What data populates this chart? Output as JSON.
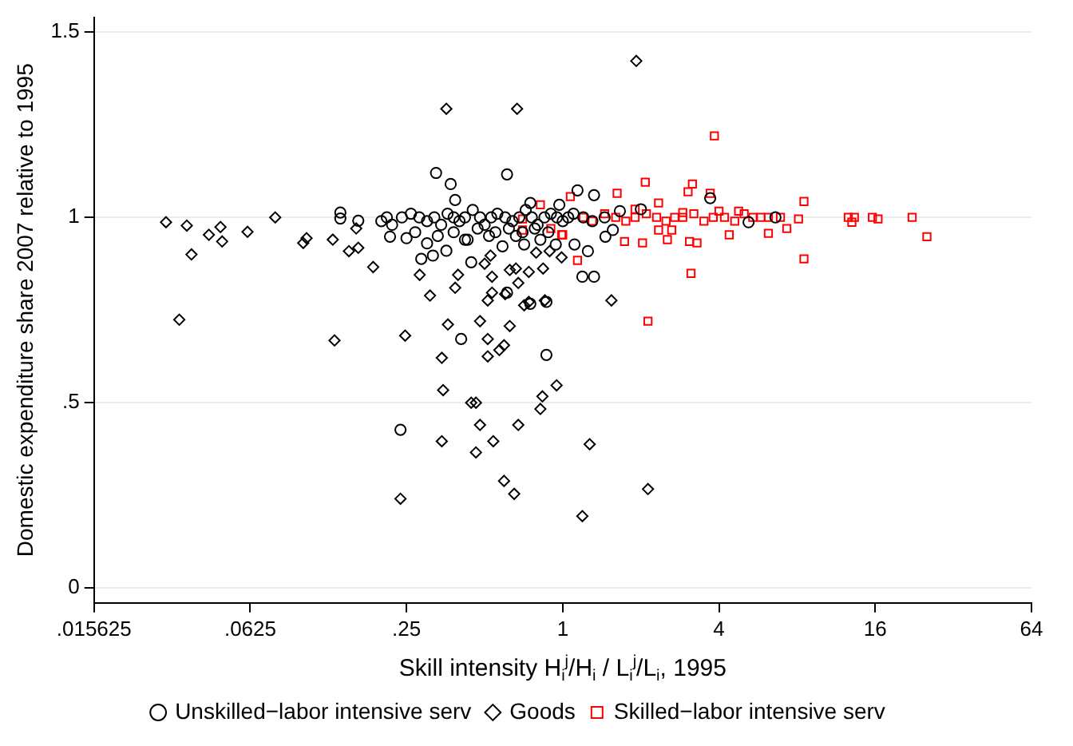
{
  "chart_data": {
    "type": "scatter",
    "xlabel": "Skill intensity H$_{i}$$^{j}$/H$_{i}$ / L$_{i}$$^{j}$/L$_{i}$, 1995",
    "ylabel": "Domestic expenditure share 2007 relative to 1995",
    "log": "x",
    "xlim": [
      0.015625,
      64
    ],
    "xticks": [
      {
        "value": 0.015625,
        "label": ".015625"
      },
      {
        "value": 0.0625,
        "label": ".0625"
      },
      {
        "value": 0.25,
        "label": ".25"
      },
      1,
      4,
      16,
      64
    ],
    "ylim": [
      -0.04,
      1.54
    ],
    "yticks": [
      0,
      {
        "value": 0.5,
        "label": ".5"
      },
      1,
      1.5
    ],
    "grid": "y",
    "legend": "bottom",
    "series": [
      {
        "name": "Unskilled−labor intensive serv",
        "color": "#000000",
        "marker": "circle",
        "x": [
          0.139,
          0.139,
          0.163,
          0.325,
          0.37,
          0.61,
          0.385,
          0.237,
          0.406,
          0.865,
          0.285,
          0.316,
          0.216,
          0.25,
          0.356,
          0.42,
          0.444,
          0.586,
          0.75,
          0.61,
          0.865,
          0.71,
          0.75,
          0.97,
          1.14,
          1.32,
          1.19,
          1.32,
          1.11,
          1.25,
          0.94,
          1.46,
          3.7,
          6.6,
          5.2,
          1.66,
          2.0,
          1.56,
          0.2,
          0.21,
          0.22,
          0.24,
          0.26,
          0.28,
          0.3,
          0.32,
          0.34,
          0.36,
          0.38,
          0.4,
          0.42,
          0.45,
          0.48,
          0.5,
          0.53,
          0.56,
          0.6,
          0.64,
          0.68,
          0.72,
          0.76,
          0.8,
          0.85,
          0.9,
          0.95,
          1.0,
          1.05,
          1.1,
          1.2,
          1.3,
          1.45,
          0.33,
          0.38,
          0.43,
          0.47,
          0.52,
          0.55,
          0.62,
          0.66,
          0.7,
          0.78,
          0.82,
          0.88,
          0.3,
          0.27
        ],
        "values": [
          1.013,
          0.997,
          0.991,
          1.12,
          1.09,
          1.116,
          1.047,
          0.427,
          0.672,
          0.629,
          0.888,
          0.897,
          0.948,
          0.944,
          0.91,
          0.94,
          0.879,
          0.922,
          0.767,
          0.797,
          0.772,
          0.927,
          1.039,
          1.034,
          1.073,
          1.06,
          0.84,
          0.84,
          0.927,
          0.909,
          0.927,
          0.948,
          1.052,
          1.0,
          0.987,
          1.017,
          1.022,
          0.966,
          0.99,
          1.0,
          0.98,
          1.0,
          1.01,
          1.0,
          0.99,
          1.0,
          0.98,
          1.01,
          1.0,
          0.99,
          1.0,
          1.02,
          1.0,
          0.98,
          1.0,
          1.01,
          1.0,
          0.99,
          1.0,
          1.02,
          1.0,
          0.98,
          1.0,
          1.01,
          1.0,
          0.99,
          1.0,
          1.01,
          1.0,
          0.99,
          1.0,
          0.95,
          0.96,
          0.94,
          0.97,
          0.95,
          0.96,
          0.97,
          0.95,
          0.96,
          0.97,
          0.94,
          0.96,
          0.93,
          0.96
        ]
      },
      {
        "name": "Goods",
        "color": "#000000",
        "marker": "diamond",
        "x": [
          0.0296,
          0.0333,
          0.0356,
          0.0371,
          0.0433,
          0.048,
          0.0487,
          0.061,
          0.078,
          0.1,
          0.103,
          0.13,
          0.132,
          0.15,
          0.16,
          0.163,
          0.186,
          0.356,
          0.667,
          0.247,
          0.237,
          0.342,
          0.346,
          0.342,
          0.361,
          0.463,
          0.444,
          0.48,
          0.463,
          0.54,
          0.48,
          0.514,
          0.514,
          0.57,
          0.594,
          0.625,
          0.594,
          0.65,
          0.674,
          0.835,
          0.82,
          0.947,
          0.5,
          0.527,
          0.534,
          0.534,
          0.514,
          0.395,
          0.385,
          0.281,
          0.308,
          0.6,
          0.66,
          0.674,
          0.74,
          0.84,
          0.71,
          0.74,
          0.853,
          0.79,
          0.625,
          1.92,
          1.54,
          1.27,
          1.19,
          2.13,
          0.99,
          0.89
        ],
        "values": [
          0.987,
          0.724,
          0.978,
          0.9,
          0.953,
          0.974,
          0.935,
          0.961,
          1.0,
          0.931,
          0.944,
          0.94,
          0.668,
          0.909,
          0.97,
          0.918,
          0.866,
          1.293,
          1.293,
          0.681,
          0.241,
          0.621,
          0.534,
          0.396,
          0.711,
          0.5,
          0.5,
          0.44,
          0.366,
          0.396,
          0.72,
          0.672,
          0.625,
          0.642,
          0.655,
          0.707,
          0.289,
          0.254,
          0.44,
          0.517,
          0.483,
          0.547,
          0.875,
          0.897,
          0.797,
          0.84,
          0.776,
          0.845,
          0.81,
          0.845,
          0.789,
          0.793,
          0.862,
          0.823,
          0.853,
          0.862,
          0.763,
          0.772,
          0.776,
          0.905,
          0.858,
          1.422,
          0.776,
          0.388,
          0.194,
          0.267,
          0.892,
          0.909
        ]
      },
      {
        "name": "Skilled−labor intensive serv",
        "color": "#ff0000",
        "marker": "square",
        "x": [
          3.84,
          2.08,
          1.62,
          3.16,
          3.04,
          3.7,
          8.5,
          2.34,
          2.13,
          3.12,
          8.5,
          25.3,
          22.2,
          16.4,
          15.6,
          13.3,
          13.0,
          12.6,
          8.1,
          7.3,
          6.2,
          4.38,
          3.29,
          3.08,
          2.53,
          2.03,
          1.73,
          1.14,
          1.0,
          1.07,
          0.82,
          0.7,
          0.7,
          0.9,
          0.99,
          6.9,
          6.2,
          4.0,
          4.76,
          2.9,
          1.9,
          2.34,
          2.63,
          1.2,
          1.3,
          1.45,
          1.6,
          1.75,
          1.9,
          2.1,
          2.3,
          2.5,
          2.7,
          2.9,
          3.2,
          3.5,
          3.8,
          4.2,
          4.6,
          5.0,
          5.4,
          5.8
        ],
        "values": [
          1.22,
          1.095,
          1.065,
          1.09,
          1.069,
          1.065,
          1.043,
          1.039,
          0.72,
          0.849,
          0.888,
          0.948,
          1.0,
          0.996,
          1.0,
          1.0,
          0.987,
          1.0,
          0.996,
          0.97,
          0.957,
          0.953,
          0.931,
          0.935,
          0.94,
          0.931,
          0.935,
          0.884,
          0.953,
          1.056,
          1.034,
          0.996,
          0.966,
          0.97,
          0.953,
          1.0,
          1.0,
          1.017,
          1.017,
          1.013,
          1.022,
          0.966,
          0.966,
          1.0,
          0.99,
          1.01,
          1.0,
          0.99,
          1.0,
          1.01,
          1.0,
          0.99,
          1.0,
          1.0,
          1.01,
          0.99,
          1.0,
          1.0,
          0.99,
          1.01,
          1.0,
          1.0
        ]
      }
    ]
  }
}
